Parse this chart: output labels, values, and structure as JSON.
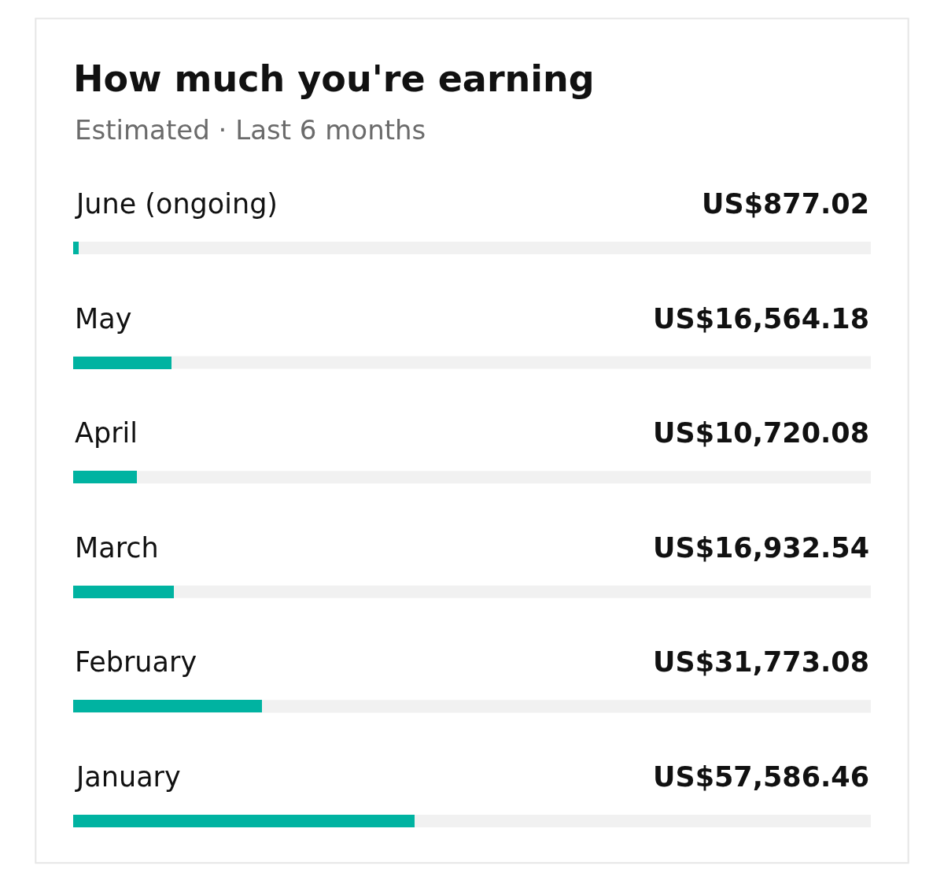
{
  "chart_data": {
    "type": "bar",
    "orientation": "horizontal",
    "title": "How much you're earning",
    "subtitle": "Estimated · Last 6 months",
    "categories": [
      "June (ongoing)",
      "May",
      "April",
      "March",
      "February",
      "January"
    ],
    "values": [
      877.02,
      16564.18,
      10720.08,
      16932.54,
      31773.08,
      57586.46
    ],
    "value_labels": [
      "US$877.02",
      "US$16,564.18",
      "US$10,720.08",
      "US$16,932.54",
      "US$31,773.08",
      "US$57,586.46"
    ],
    "color": "#00b3a1",
    "xlim": [
      0,
      134500
    ],
    "tick_labels": false,
    "legend": false
  }
}
